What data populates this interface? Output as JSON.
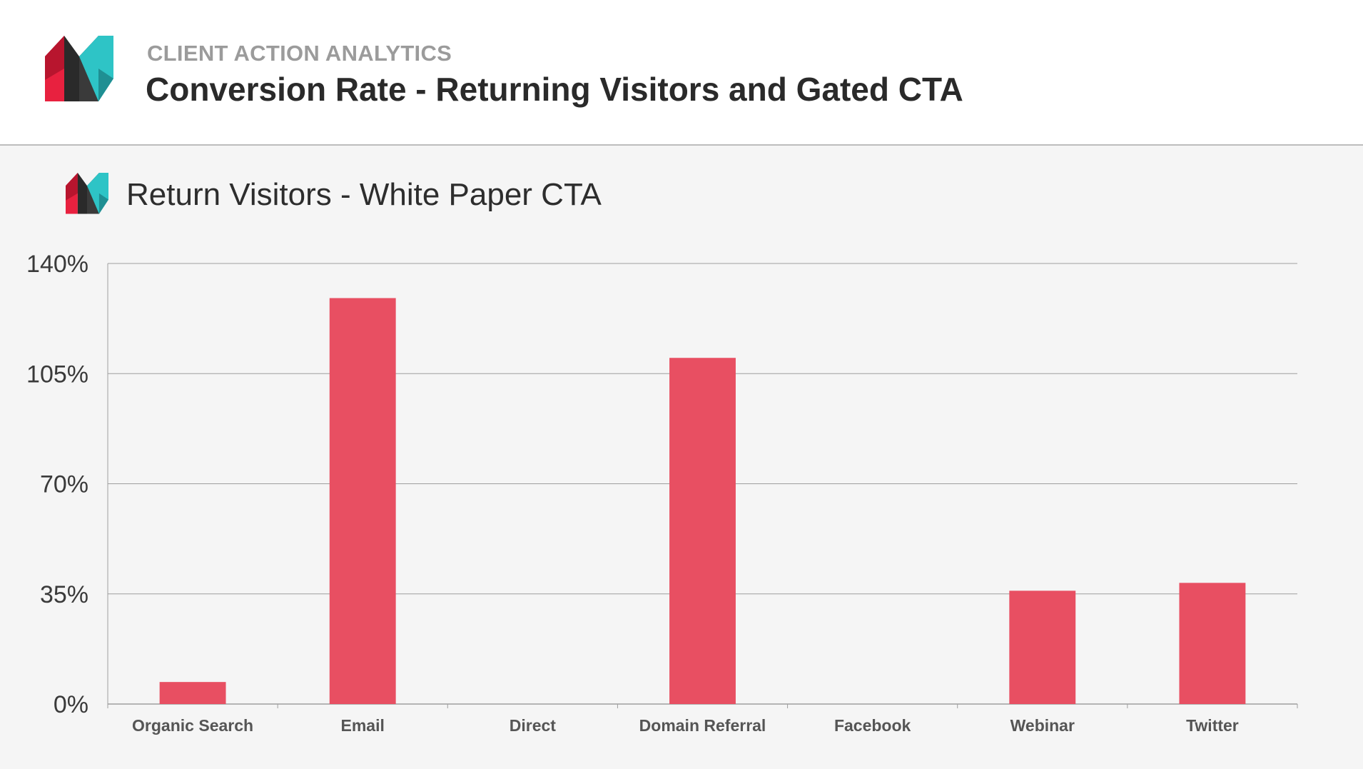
{
  "header": {
    "kicker": "CLIENT ACTION ANALYTICS",
    "title": "Conversion Rate - Returning Visitors and Gated CTA"
  },
  "icons": {
    "logo": "brand-logo-icon"
  },
  "colors": {
    "bar": "#e84f62",
    "logo_red": "#e8213f",
    "logo_dark": "#2a2a2a",
    "logo_teal": "#2ec4c6",
    "grid": "#9e9e9e",
    "axis_text": "#3a3a3a",
    "category_text": "#555555"
  },
  "chart_data": {
    "type": "bar",
    "title": "Return Visitors - White Paper CTA",
    "xlabel": "",
    "ylabel": "",
    "categories": [
      "Organic Search",
      "Email",
      "Direct",
      "Domain Referral",
      "Facebook",
      "Webinar",
      "Twitter"
    ],
    "values": [
      7,
      129,
      0,
      110,
      0,
      36,
      38.5
    ],
    "y_ticks": [
      "0%",
      "35%",
      "70%",
      "105%",
      "140%"
    ],
    "y_tick_values": [
      0,
      35,
      70,
      105,
      140
    ],
    "ylim": [
      0,
      140
    ],
    "grid": true,
    "legend": "none"
  }
}
